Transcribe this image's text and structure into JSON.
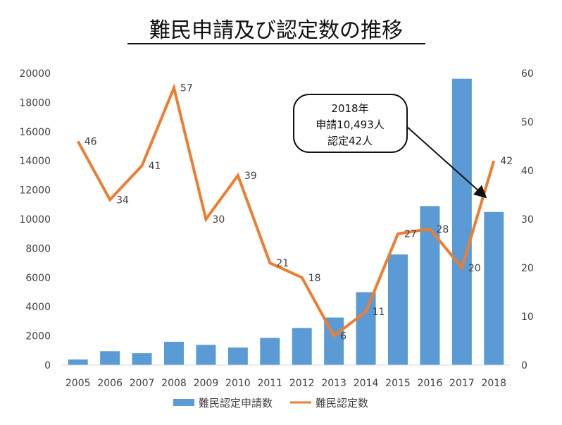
{
  "chart_data": {
    "type": "bar+line",
    "title": "難民申請及び認定数の推移",
    "categories": [
      "2005",
      "2006",
      "2007",
      "2008",
      "2009",
      "2010",
      "2011",
      "2012",
      "2013",
      "2014",
      "2015",
      "2016",
      "2017",
      "2018"
    ],
    "series": [
      {
        "name": "難民認定申請数",
        "type": "bar",
        "axis": "left",
        "color": "#5b9bd5",
        "values": [
          384,
          954,
          816,
          1599,
          1388,
          1202,
          1867,
          2545,
          3260,
          5000,
          7586,
          10901,
          19629,
          10493
        ]
      },
      {
        "name": "難民認定数",
        "type": "line",
        "axis": "right",
        "color": "#ed7d31",
        "values": [
          46,
          34,
          41,
          57,
          30,
          39,
          21,
          18,
          6,
          11,
          27,
          28,
          20,
          42
        ],
        "labels": [
          "46",
          "34",
          "41",
          "57",
          "30",
          "39",
          "21",
          "18",
          "6",
          "11",
          "27",
          "28",
          "20",
          "42"
        ]
      }
    ],
    "y_left": {
      "min": 0,
      "max": 20000,
      "ticks": [
        "0",
        "2000",
        "4000",
        "6000",
        "8000",
        "10000",
        "12000",
        "14000",
        "16000",
        "18000",
        "20000"
      ]
    },
    "y_right": {
      "min": 0,
      "max": 60,
      "ticks": [
        "0",
        "10",
        "20",
        "30",
        "40",
        "50",
        "60"
      ]
    },
    "grid": false,
    "legend_position": "bottom",
    "annotation": {
      "lines": [
        "2018年",
        "申請10,493人",
        "認定42人"
      ],
      "points_to": "2018"
    }
  }
}
